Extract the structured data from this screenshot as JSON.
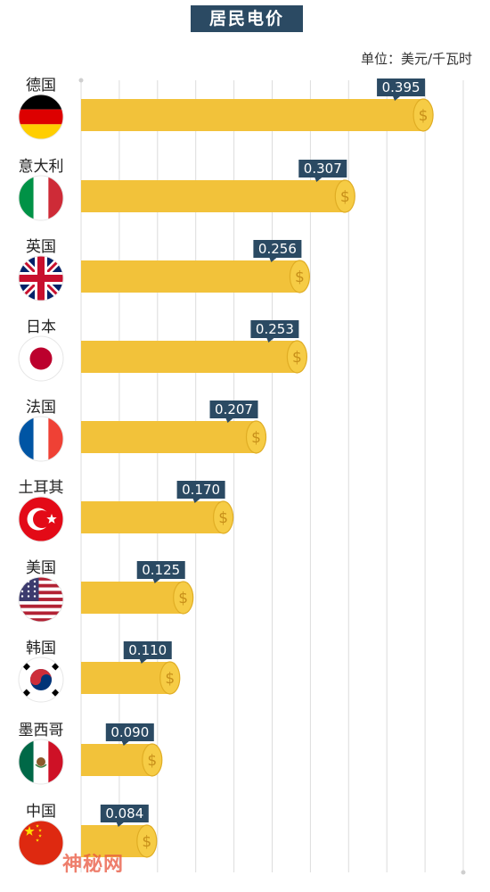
{
  "chart_data": {
    "type": "bar",
    "orientation": "horizontal",
    "title": "居民电价",
    "unit_label": "单位：美元/千瓦时",
    "categories": [
      "德国",
      "意大利",
      "英国",
      "日本",
      "法国",
      "土耳其",
      "美国",
      "韩国",
      "墨西哥",
      "中国"
    ],
    "values": [
      0.395,
      0.307,
      0.256,
      0.253,
      0.207,
      0.17,
      0.125,
      0.11,
      0.09,
      0.084
    ],
    "value_labels": [
      "0.395",
      "0.307",
      "0.256",
      "0.253",
      "0.207",
      "0.170",
      "0.125",
      "0.110",
      "0.090",
      "0.084"
    ],
    "xlim": [
      0,
      0.43
    ],
    "grid": true,
    "bar_color": "#f2c23a",
    "coin_color": "#f6cc45",
    "label_bg_color": "#2b4a63",
    "coin_symbol": "$",
    "flag_icons": [
      "germany-flag-icon",
      "italy-flag-icon",
      "uk-flag-icon",
      "japan-flag-icon",
      "france-flag-icon",
      "turkey-flag-icon",
      "usa-flag-icon",
      "korea-flag-icon",
      "mexico-flag-icon",
      "china-flag-icon"
    ]
  },
  "watermark": "神秘网"
}
